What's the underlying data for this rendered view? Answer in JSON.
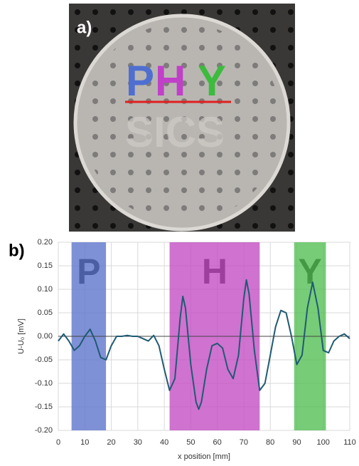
{
  "panel_a": {
    "label": "a)",
    "letters": [
      "P",
      "H",
      "Y"
    ],
    "lower_text": "SICS"
  },
  "panel_b": {
    "label": "b)"
  },
  "chart_data": {
    "type": "line",
    "xlabel": "x position [mm]",
    "ylabel": "U-U₀ [mV]",
    "x": [
      0,
      2,
      4,
      6,
      8,
      10,
      12,
      14,
      16,
      18,
      20,
      22,
      24,
      26,
      28,
      30,
      32,
      34,
      36,
      38,
      40,
      42,
      44,
      46,
      47,
      48,
      50,
      52,
      53,
      54,
      56,
      58,
      60,
      62,
      64,
      66,
      68,
      70,
      71,
      72,
      74,
      76,
      78,
      80,
      82,
      84,
      86,
      88,
      90,
      92,
      94,
      96,
      98,
      100,
      102,
      104,
      106,
      108,
      110
    ],
    "values": [
      -0.01,
      0.005,
      -0.01,
      -0.03,
      -0.02,
      0.0,
      0.015,
      -0.01,
      -0.045,
      -0.05,
      -0.02,
      0.0,
      0.0,
      0.002,
      0.0,
      0.0,
      -0.005,
      -0.01,
      0.002,
      -0.02,
      -0.07,
      -0.115,
      -0.09,
      0.04,
      0.085,
      0.06,
      -0.06,
      -0.14,
      -0.155,
      -0.14,
      -0.07,
      -0.02,
      -0.015,
      -0.025,
      -0.07,
      -0.09,
      -0.04,
      0.08,
      0.12,
      0.09,
      -0.03,
      -0.115,
      -0.1,
      -0.04,
      0.02,
      0.055,
      0.05,
      0.0,
      -0.06,
      -0.04,
      0.06,
      0.115,
      0.06,
      -0.03,
      -0.035,
      -0.01,
      0.0,
      0.005,
      -0.005
    ],
    "color": "#1f5a73",
    "bands": [
      {
        "label": "P",
        "from": 5,
        "to": 18,
        "color": "#5f76cc"
      },
      {
        "label": "H",
        "from": 42,
        "to": 76,
        "color": "#c44fc4"
      },
      {
        "label": "Y",
        "from": 89,
        "to": 101,
        "color": "#55bf55"
      }
    ],
    "xlim": [
      0,
      110
    ],
    "xticks": [
      0,
      10,
      20,
      30,
      40,
      50,
      60,
      70,
      80,
      90,
      100,
      110
    ],
    "ylim": [
      -0.2,
      0.2
    ],
    "yticks": [
      {
        "value": 0.2,
        "label": "0.20"
      },
      {
        "value": 0.15,
        "label": "0.15"
      },
      {
        "value": 0.1,
        "label": "0.10"
      },
      {
        "value": 0.05,
        "label": "0.05"
      },
      {
        "value": 0,
        "label": "0.00"
      },
      {
        "value": -0.05,
        "label": "-0.05"
      },
      {
        "value": -0.1,
        "label": "-0.10"
      },
      {
        "value": -0.15,
        "label": "-0.15"
      },
      {
        "value": -0.2,
        "label": "-0.20"
      }
    ],
    "grid": true
  }
}
